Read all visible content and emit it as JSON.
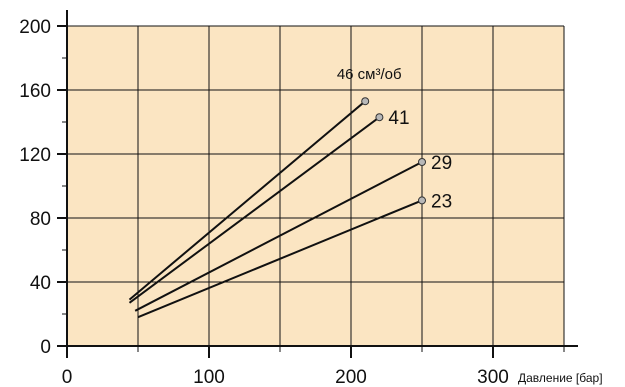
{
  "chart_data": {
    "type": "line",
    "xlabel": "Давление [бар]",
    "ylabel": "",
    "xlim": [
      0,
      350
    ],
    "ylim": [
      0,
      200
    ],
    "x_ticks": [
      0,
      100,
      200,
      300
    ],
    "y_ticks": [
      0,
      40,
      80,
      120,
      160,
      200
    ],
    "x_tick_labels": [
      "0",
      "100",
      "200",
      "300"
    ],
    "y_tick_labels": [
      "0",
      "40",
      "80",
      "120",
      "160",
      "200"
    ],
    "grid": true,
    "colors": {
      "plot_bg": "#fbe5c2",
      "line": "#111111",
      "marker_fill": "#b8b8b8"
    },
    "series": [
      {
        "name": "46",
        "unit_label": "см³/об",
        "x": [
          44,
          210
        ],
        "y": [
          29,
          153
        ]
      },
      {
        "name": "41",
        "x": [
          44,
          220
        ],
        "y": [
          27,
          143
        ]
      },
      {
        "name": "29",
        "x": [
          48,
          250
        ],
        "y": [
          22,
          115
        ]
      },
      {
        "name": "23",
        "x": [
          50,
          250
        ],
        "y": [
          18,
          91
        ]
      }
    ]
  }
}
